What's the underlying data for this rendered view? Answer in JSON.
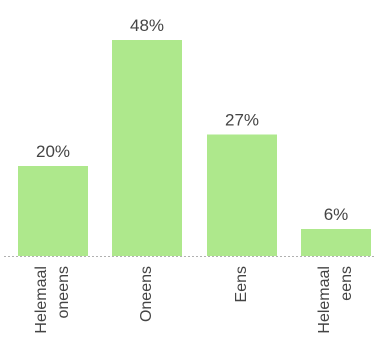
{
  "chart_data": {
    "type": "bar",
    "categories": [
      [
        "Helemaal",
        "oneens"
      ],
      [
        "Oneens"
      ],
      [
        "Eens"
      ],
      [
        "Helemaal",
        "eens"
      ]
    ],
    "values": [
      20,
      48,
      27,
      6
    ],
    "data_labels": [
      "20%",
      "48%",
      "27%",
      "6%"
    ],
    "ylim": [
      0,
      50
    ],
    "grid": false,
    "bar_color": "#aee88c",
    "label_color": "#444444",
    "baseline_color": "#b0b0b0"
  }
}
